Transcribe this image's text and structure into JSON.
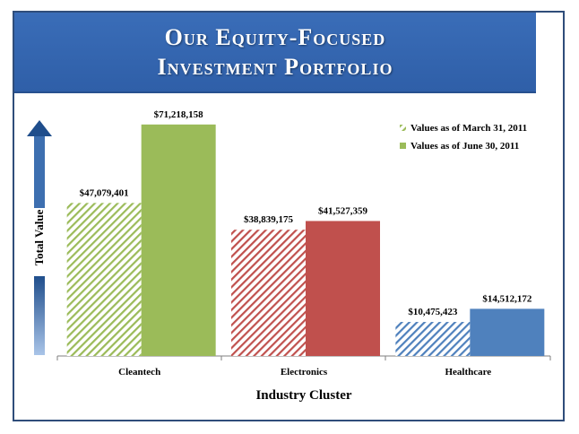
{
  "slide": {
    "title_line1": "Our Equity-Focused",
    "title_line2": "Investment Portfolio"
  },
  "colors": {
    "banner": "#2f5fa8",
    "frame": "#2f4d7a",
    "cleantech": "#9bbb59",
    "electronics": "#c0504d",
    "healthcare": "#4f81bd",
    "axis_arrow": "#1f4e8c"
  },
  "chart_data": {
    "type": "bar",
    "categories": [
      "Cleantech",
      "Electronics",
      "Healthcare"
    ],
    "series": [
      {
        "name": "Values as of March 31, 2011",
        "values": [
          47079401,
          38839175,
          10475423
        ],
        "pattern": "hatched"
      },
      {
        "name": "Values as of June 30, 2011",
        "values": [
          71218158,
          41527359,
          14512172
        ],
        "pattern": "solid"
      }
    ],
    "data_labels": [
      [
        "$47,079,401",
        "$38,839,175",
        "$10,475,423"
      ],
      [
        "$71,218,158",
        "$41,527,359",
        "$14,512,172"
      ]
    ],
    "xlabel": "Industry Cluster",
    "ylabel": "Total Value",
    "ylim": [
      0,
      80000000
    ],
    "grid": false,
    "legend_position": "top-right"
  }
}
